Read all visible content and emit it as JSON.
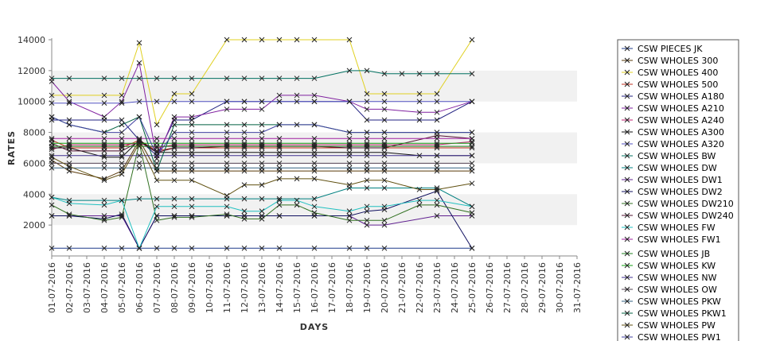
{
  "chart_data": {
    "type": "line",
    "xlabel": "DAYS",
    "ylabel": "RATES",
    "ylim": [
      0,
      14000
    ],
    "y_ticks": [
      2000,
      4000,
      6000,
      8000,
      10000,
      12000,
      14000
    ],
    "grid": "alternating horizontal bands",
    "legend_position": "right",
    "categories": [
      "01-07-2016",
      "02-07-2016",
      "03-07-2016",
      "04-07-2016",
      "05-07-2016",
      "06-07-2016",
      "07-07-2016",
      "08-07-2016",
      "09-07-2016",
      "10-07-2016",
      "11-07-2016",
      "12-07-2016",
      "13-07-2016",
      "14-07-2016",
      "15-07-2016",
      "16-07-2016",
      "17-07-2016",
      "18-07-2016",
      "19-07-2016",
      "20-07-2016",
      "21-07-2016",
      "22-07-2016",
      "23-07-2016",
      "24-07-2016",
      "25-07-2016",
      "26-07-2016",
      "27-07-2016",
      "28-07-2016",
      "29-07-2016",
      "30-07-2016",
      "31-07-2016"
    ],
    "series": [
      {
        "name": "CSW PIECES JK",
        "color": "#1f3c8c",
        "values": [
          500,
          500,
          null,
          500,
          500,
          500,
          500,
          500,
          500,
          null,
          500,
          500,
          500,
          500,
          null,
          500,
          null,
          500,
          500,
          500,
          null,
          null,
          null,
          null,
          500,
          null,
          null,
          null,
          null,
          null,
          null
        ]
      },
      {
        "name": "CSW WHOLES 300",
        "color": "#5a3a0a",
        "values": [
          6200,
          5500,
          null,
          5000,
          5500,
          7500,
          5500,
          5500,
          5500,
          null,
          5500,
          5500,
          5500,
          5500,
          null,
          5500,
          null,
          5500,
          5500,
          5500,
          null,
          null,
          5500,
          null,
          5500,
          null,
          null,
          null,
          null,
          null,
          null
        ]
      },
      {
        "name": "CSW WHOLES 400",
        "color": "#e0d020",
        "values": [
          10400,
          10400,
          null,
          10400,
          10400,
          13800,
          8500,
          10500,
          10500,
          null,
          14000,
          14000,
          14000,
          14000,
          14000,
          14000,
          null,
          14000,
          10500,
          10500,
          null,
          10500,
          10500,
          null,
          14000,
          null,
          null,
          null,
          null,
          null,
          null
        ]
      },
      {
        "name": "CSW WHOLES 500",
        "color": "#c03020",
        "values": [
          7500,
          7000,
          null,
          7000,
          7000,
          7500,
          6800,
          7000,
          7000,
          null,
          7000,
          7000,
          7000,
          7000,
          null,
          7000,
          null,
          7000,
          7000,
          7000,
          null,
          null,
          7000,
          null,
          7000,
          null,
          null,
          null,
          null,
          null,
          null
        ]
      },
      {
        "name": "CSW WHOLES A180",
        "color": "#202080",
        "values": [
          8800,
          8800,
          null,
          8800,
          8800,
          7500,
          6500,
          8800,
          8800,
          null,
          10000,
          10000,
          10000,
          10000,
          10000,
          10000,
          null,
          10000,
          8800,
          8800,
          null,
          8800,
          8800,
          null,
          10000,
          null,
          null,
          null,
          null,
          null,
          null
        ]
      },
      {
        "name": "CSW WHOLES A210",
        "color": "#8020a0",
        "values": [
          11300,
          10000,
          null,
          9000,
          10000,
          12500,
          6300,
          9000,
          9000,
          null,
          9500,
          9500,
          9500,
          10400,
          10400,
          10400,
          null,
          10000,
          9500,
          9500,
          null,
          9300,
          9300,
          null,
          10000,
          null,
          null,
          null,
          null,
          null,
          null
        ]
      },
      {
        "name": "CSW WHOLES A240",
        "color": "#c02070",
        "values": [
          6900,
          7200,
          null,
          7200,
          7200,
          7300,
          7000,
          7200,
          7200,
          null,
          7200,
          7200,
          7200,
          7200,
          null,
          7200,
          null,
          7200,
          7200,
          7200,
          null,
          null,
          7200,
          null,
          7400,
          null,
          null,
          null,
          null,
          null,
          null
        ]
      },
      {
        "name": "CSW WHOLES A300",
        "color": "#101010",
        "values": [
          7000,
          7000,
          null,
          6400,
          6400,
          7500,
          6700,
          6700,
          6700,
          null,
          6700,
          6700,
          6700,
          6700,
          null,
          6700,
          null,
          6700,
          6700,
          6700,
          null,
          6500,
          6500,
          null,
          6500,
          null,
          null,
          null,
          null,
          null,
          null
        ]
      },
      {
        "name": "CSW WHOLES A320",
        "color": "#5050c0",
        "values": [
          9900,
          9900,
          null,
          9900,
          9900,
          10000,
          10000,
          10000,
          10000,
          null,
          10000,
          10000,
          10000,
          10000,
          null,
          10000,
          null,
          10000,
          10000,
          10000,
          null,
          10000,
          10000,
          null,
          10000,
          null,
          null,
          null,
          null,
          null,
          null
        ]
      },
      {
        "name": "CSW WHOLES BW",
        "color": "#007060",
        "values": [
          11500,
          11500,
          null,
          11500,
          11500,
          11500,
          11500,
          11500,
          11500,
          null,
          11500,
          11500,
          11500,
          11500,
          11500,
          11500,
          null,
          12000,
          12000,
          11800,
          11800,
          11800,
          11800,
          null,
          11800,
          null,
          null,
          null,
          null,
          null,
          null
        ]
      },
      {
        "name": "CSW WHOLES DW",
        "color": "#008080",
        "values": [
          3800,
          3600,
          null,
          3600,
          3600,
          3700,
          3700,
          3700,
          3700,
          null,
          3700,
          3700,
          3700,
          3700,
          null,
          3700,
          null,
          4400,
          4400,
          4400,
          null,
          null,
          4400,
          null,
          3200,
          null,
          null,
          null,
          null,
          null,
          null
        ]
      },
      {
        "name": "CSW WHOLES DW1",
        "color": "#602090",
        "values": [
          2600,
          2600,
          null,
          2600,
          2600,
          500,
          2600,
          2600,
          2600,
          null,
          2600,
          2600,
          2600,
          2600,
          null,
          2600,
          null,
          2600,
          2000,
          2000,
          null,
          null,
          2600,
          null,
          2600,
          null,
          null,
          null,
          null,
          null,
          null
        ]
      },
      {
        "name": "CSW WHOLES DW2",
        "color": "#101060",
        "values": [
          2600,
          2600,
          null,
          2400,
          2700,
          500,
          2600,
          2600,
          2600,
          null,
          2600,
          2600,
          2600,
          2600,
          null,
          2600,
          null,
          2600,
          2900,
          3000,
          null,
          null,
          4200,
          null,
          500,
          null,
          null,
          null,
          null,
          null,
          null
        ]
      },
      {
        "name": "CSW WHOLES DW210",
        "color": "#307020",
        "values": [
          3300,
          2700,
          null,
          2300,
          2500,
          7300,
          2300,
          2500,
          2500,
          null,
          2700,
          2400,
          2400,
          3300,
          3300,
          2800,
          null,
          2300,
          2300,
          2300,
          null,
          3300,
          3300,
          null,
          2800,
          null,
          null,
          null,
          null,
          null,
          null
        ]
      },
      {
        "name": "CSW WHOLES DW240",
        "color": "#501030",
        "values": [
          7300,
          6800,
          null,
          6800,
          6800,
          7400,
          6700,
          7000,
          7000,
          null,
          7100,
          7100,
          7100,
          7100,
          null,
          7100,
          null,
          7000,
          7000,
          7000,
          null,
          null,
          7800,
          null,
          7600,
          null,
          null,
          null,
          null,
          null,
          null
        ]
      },
      {
        "name": "CSW WHOLES FW",
        "color": "#20c0c0",
        "values": [
          3800,
          3400,
          null,
          3300,
          3600,
          500,
          3200,
          3200,
          3200,
          null,
          3200,
          2900,
          2900,
          3600,
          3600,
          3200,
          null,
          2900,
          3200,
          3200,
          null,
          3600,
          3600,
          null,
          3200,
          null,
          null,
          null,
          null,
          null,
          null
        ]
      },
      {
        "name": "CSW WHOLES FW1",
        "color": "#a020a0",
        "values": [
          7600,
          7600,
          null,
          7600,
          7600,
          7600,
          7600,
          7600,
          7600,
          null,
          7600,
          7600,
          7600,
          7600,
          null,
          7600,
          null,
          7600,
          7600,
          7600,
          null,
          null,
          7600,
          null,
          7600,
          null,
          null,
          null,
          null,
          null,
          null
        ]
      },
      {
        "name": "CSW WHOLES JB",
        "color": "#208020",
        "values": [
          7100,
          7100,
          null,
          7100,
          7100,
          7100,
          7100,
          7100,
          7100,
          null,
          7100,
          7100,
          7100,
          7100,
          null,
          7100,
          null,
          7100,
          7100,
          7100,
          null,
          null,
          7100,
          null,
          7100,
          null,
          null,
          null,
          null,
          null,
          null
        ]
      },
      {
        "name": "CSW WHOLES KW",
        "color": "#10a010",
        "values": [
          7300,
          7300,
          null,
          7300,
          7300,
          7300,
          7300,
          7300,
          7300,
          null,
          7300,
          7300,
          7300,
          7300,
          null,
          7300,
          null,
          7300,
          7300,
          7300,
          null,
          null,
          7300,
          null,
          7300,
          null,
          null,
          null,
          null,
          null,
          null
        ]
      },
      {
        "name": "CSW WHOLES NW",
        "color": "#403090",
        "values": [
          6500,
          6500,
          null,
          6500,
          6500,
          6500,
          6500,
          6500,
          6500,
          null,
          6500,
          6500,
          6500,
          6500,
          null,
          6500,
          null,
          6500,
          6500,
          6500,
          null,
          null,
          6500,
          null,
          6500,
          null,
          null,
          null,
          null,
          null,
          null
        ]
      },
      {
        "name": "CSW WHOLES OW",
        "color": "#504050",
        "values": [
          6000,
          6000,
          null,
          6000,
          6000,
          6000,
          6000,
          6000,
          6000,
          null,
          6000,
          6000,
          6000,
          6000,
          null,
          6000,
          null,
          6000,
          6000,
          6000,
          null,
          null,
          6000,
          null,
          6000,
          null,
          null,
          null,
          null,
          null,
          null
        ]
      },
      {
        "name": "CSW WHOLES PKW",
        "color": "#306080",
        "values": [
          5700,
          5700,
          null,
          5700,
          5700,
          5700,
          5700,
          5700,
          5700,
          null,
          5700,
          5700,
          5700,
          5700,
          null,
          5700,
          null,
          5700,
          5700,
          5700,
          null,
          null,
          5700,
          null,
          5700,
          null,
          null,
          null,
          null,
          null,
          null
        ]
      },
      {
        "name": "CSW WHOLES PKW1",
        "color": "#006040",
        "values": [
          9000,
          8500,
          null,
          8000,
          8500,
          9000,
          5500,
          8500,
          8500,
          null,
          8500,
          8500,
          8500,
          8500,
          null,
          8500,
          null,
          8000,
          8000,
          8000,
          null,
          null,
          8000,
          null,
          8000,
          null,
          null,
          null,
          null,
          null,
          null
        ]
      },
      {
        "name": "CSW WHOLES PW",
        "color": "#605010",
        "values": [
          6400,
          5800,
          null,
          4900,
          5300,
          7300,
          4900,
          4900,
          4900,
          null,
          3900,
          4600,
          4600,
          5000,
          5000,
          5000,
          null,
          4600,
          4900,
          4900,
          null,
          4300,
          4300,
          null,
          4700,
          null,
          null,
          null,
          null,
          null,
          null
        ]
      },
      {
        "name": "CSW WHOLES PW1",
        "color": "#4040a0",
        "values": [
          9000,
          8500,
          null,
          8000,
          8000,
          9000,
          6500,
          8000,
          8000,
          null,
          8000,
          8000,
          8000,
          8500,
          8500,
          8500,
          null,
          8000,
          8000,
          8000,
          null,
          null,
          8000,
          null,
          8000,
          null,
          null,
          null,
          null,
          null,
          null
        ]
      }
    ]
  }
}
